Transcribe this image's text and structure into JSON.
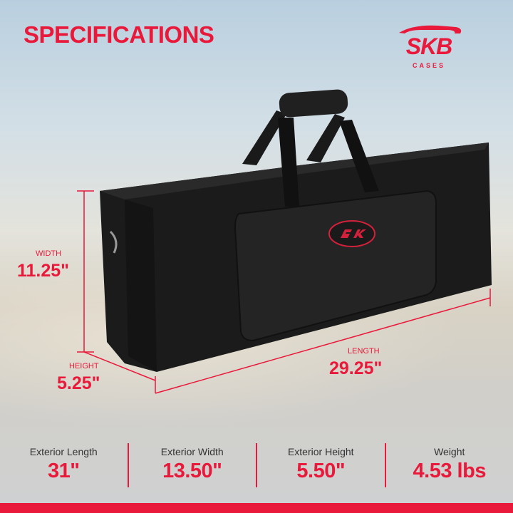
{
  "title": "SPECIFICATIONS",
  "brand": {
    "logo_text": "SKB",
    "logo_sub": "CASES",
    "accent": "#e8193a"
  },
  "dimensions": {
    "width": {
      "label": "WIDTH",
      "value": "11.25\""
    },
    "height": {
      "label": "HEIGHT",
      "value": "5.25\""
    },
    "length": {
      "label": "LENGTH",
      "value": "29.25\""
    }
  },
  "specs": [
    {
      "label": "Exterior Length",
      "value": "31\""
    },
    {
      "label": "Exterior Width",
      "value": "13.50\""
    },
    {
      "label": "Exterior Height",
      "value": "5.50\""
    },
    {
      "label": "Weight",
      "value": "4.53 lbs"
    }
  ]
}
